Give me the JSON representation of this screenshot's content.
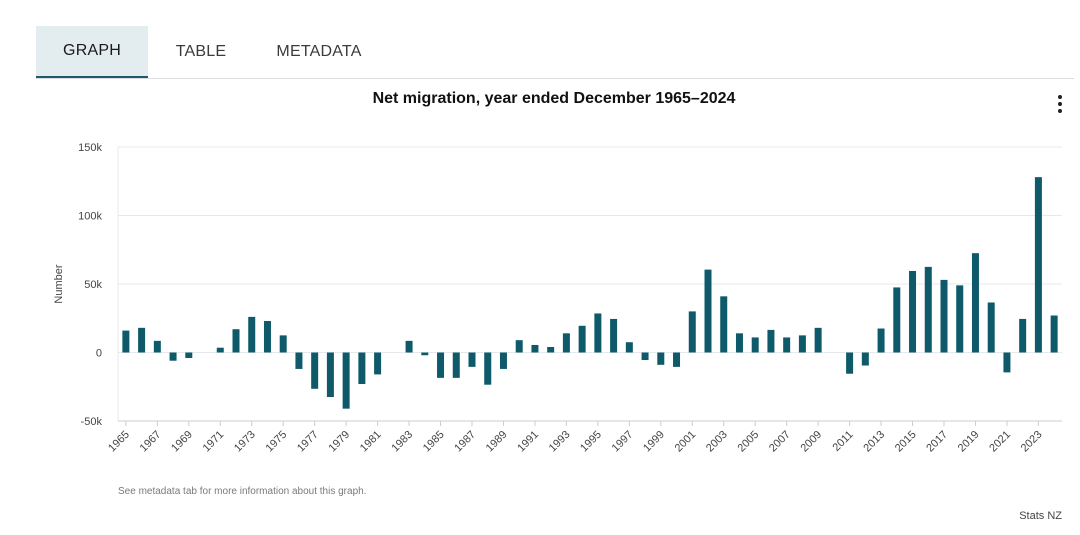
{
  "tabs": [
    {
      "label": "GRAPH",
      "active": true
    },
    {
      "label": "TABLE",
      "active": false
    },
    {
      "label": "METADATA",
      "active": false
    }
  ],
  "menu_icon": "more-vertical-icon",
  "note": "See metadata tab for more information about this graph.",
  "source": "Stats NZ",
  "colors": {
    "bar": "#0e5a6a",
    "grid": "#e6e9eb",
    "axis": "#c8cdd0",
    "tab_active_bg": "#e3ecef",
    "tab_underline": "#1e5a6b"
  },
  "chart_data": {
    "type": "bar",
    "title": "Net migration, year ended December 1965–2024",
    "xlabel": "",
    "ylabel": "Number",
    "ylim": [
      -50000,
      150000
    ],
    "yticks": [
      -50000,
      0,
      50000,
      100000,
      150000
    ],
    "ytick_labels": [
      "-50k",
      "0",
      "50k",
      "100k",
      "150k"
    ],
    "grid": "horizontal",
    "x_tick_labels_every": 2,
    "categories": [
      "1965",
      "1966",
      "1967",
      "1968",
      "1969",
      "1970",
      "1971",
      "1972",
      "1973",
      "1974",
      "1975",
      "1976",
      "1977",
      "1978",
      "1979",
      "1980",
      "1981",
      "1982",
      "1983",
      "1984",
      "1985",
      "1986",
      "1987",
      "1988",
      "1989",
      "1990",
      "1991",
      "1992",
      "1993",
      "1994",
      "1995",
      "1996",
      "1997",
      "1998",
      "1999",
      "2000",
      "2001",
      "2002",
      "2003",
      "2004",
      "2005",
      "2006",
      "2007",
      "2008",
      "2009",
      "2010",
      "2011",
      "2012",
      "2013",
      "2014",
      "2015",
      "2016",
      "2017",
      "2018",
      "2019",
      "2020",
      "2021",
      "2022",
      "2023",
      "2024"
    ],
    "values": [
      16000,
      18000,
      8500,
      -6000,
      -4000,
      0,
      3500,
      17000,
      26000,
      23000,
      12500,
      -12000,
      -26500,
      -32500,
      -41000,
      -23000,
      -16000,
      0,
      8500,
      -2000,
      -18500,
      -18500,
      -10500,
      -23500,
      -12000,
      9000,
      5500,
      4000,
      14000,
      19500,
      28500,
      24500,
      7500,
      -5500,
      -9000,
      -10500,
      30000,
      60500,
      41000,
      14000,
      11000,
      16500,
      11000,
      12500,
      18000,
      0,
      -15500,
      -9500,
      17500,
      47500,
      59500,
      62500,
      53000,
      49000,
      72500,
      36500,
      -14500,
      24500,
      128000,
      27000
    ]
  }
}
